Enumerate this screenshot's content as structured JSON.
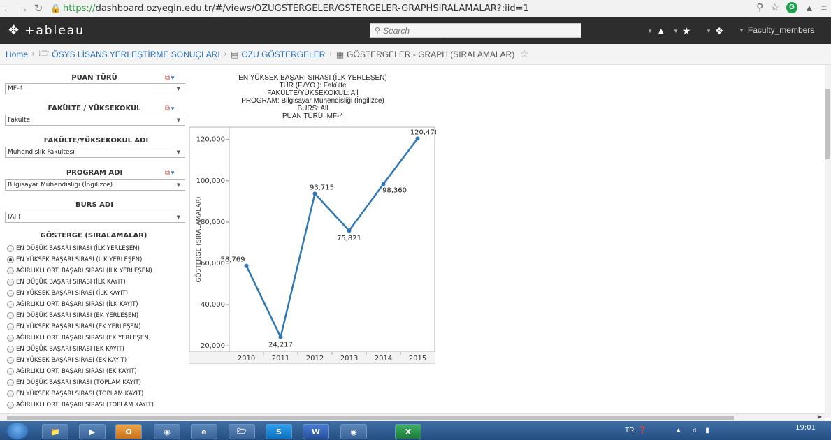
{
  "browser": {
    "url_scheme": "https://",
    "url_rest": "dashboard.ozyegin.edu.tr/#/views/OZUGSTERGELER/GSTERGELER-GRAPHSIRALAMALAR?:iid=1"
  },
  "header": {
    "logo": "+ableau",
    "search_placeholder": "Search",
    "user_menu": "Faculty_members"
  },
  "breadcrumb": {
    "home": "Home",
    "item1": "ÖSYS LİSANS YERLEŞTİRME SONUÇLARI",
    "item2": "OZU GÖSTERGELER",
    "item3": "GÖSTERGELER - GRAPH (SIRALAMALAR)"
  },
  "filters": {
    "puan_turu": {
      "title": "PUAN TÜRÜ",
      "value": "MF-4"
    },
    "fakulte_yuksekokul": {
      "title": "FAKÜLTE / YÜKSEKOKUL",
      "value": "Fakülte"
    },
    "fakulte_adi": {
      "title": "FAKÜLTE/YÜKSEKOKUL ADI",
      "value": "Mühendislik Fakültesi"
    },
    "program_adi": {
      "title": "PROGRAM ADI",
      "value": "Bilgisayar Mühendisliği (İngilizce)"
    },
    "burs_adi": {
      "title": "BURS ADI",
      "value": "(All)"
    }
  },
  "gosterge": {
    "title": "GÖSTERGE (SIRALAMALAR)",
    "selected_index": 1,
    "options": [
      "EN DÜŞÜK BAŞARI SIRASI (İLK YERLEŞEN)",
      "EN YÜKSEK BAŞARI SIRASI (İLK YERLEŞEN)",
      "AĞIRLIKLI ORT. BAŞARI SIRASI (İLK YERLEŞEN)",
      "EN DÜŞÜK BAŞARI SIRASI (İLK KAYIT)",
      "EN YÜKSEK BAŞARI SIRASI (İLK KAYIT)",
      "AĞIRLIKLI ORT. BAŞARI SIRASI (İLK KAYIT)",
      "EN DÜŞÜK BAŞARI SIRASI (EK YERLEŞEN)",
      "EN YÜKSEK BAŞARI SIRASI (EK YERLEŞEN)",
      "AĞIRLIKLI ORT. BAŞARI SIRASI (EK YERLEŞEN)",
      "EN DÜŞÜK BAŞARI SIRASI (EK KAYIT)",
      "EN YÜKSEK BAŞARI SIRASI (EK KAYIT)",
      "AĞIRLIKLI ORT. BAŞARI SIRASI (EK KAYIT)",
      "EN DÜŞÜK BAŞARI SIRASI (TOPLAM KAYIT)",
      "EN YÜKSEK BAŞARI SIRASI (TOPLAM KAYIT)",
      "AĞIRLIKLI ORT. BAŞARI SIRASI (TOPLAM KAYIT)"
    ]
  },
  "chart_title": {
    "line1": "EN YÜKSEK BAŞARI SIRASI (İLK YERLEŞEN)",
    "line2": "TÜR (F./YO.): Fakülte",
    "line3": "FAKÜLTE/YÜKSEKOKUL: All",
    "line4": "PROGRAM: Bilgisayar Mühendisliği (İngilizce)",
    "line5": "BURS: All",
    "line6": "PUAN TÜRÜ: MF-4"
  },
  "chart_data": {
    "type": "line",
    "x": [
      "2010",
      "2011",
      "2012",
      "2013",
      "2014",
      "2015"
    ],
    "values": [
      58769,
      24217,
      93715,
      75821,
      98360,
      120478
    ],
    "data_labels": [
      "58,769",
      "24,217",
      "93,715",
      "75,821",
      "98,360",
      "120,478"
    ],
    "ylabel": "GÖSTERGE (SIRALAMALAR)",
    "yticks": [
      20000,
      40000,
      60000,
      80000,
      100000,
      120000
    ],
    "ytick_labels": [
      "20,000",
      "40,000",
      "60,000",
      "80,000",
      "100,000",
      "120,000"
    ],
    "ylim": [
      17000,
      126000
    ],
    "line_color": "#2f78b4",
    "grid": false
  },
  "taskbar": {
    "lang": "TR",
    "clock": "19:01"
  }
}
